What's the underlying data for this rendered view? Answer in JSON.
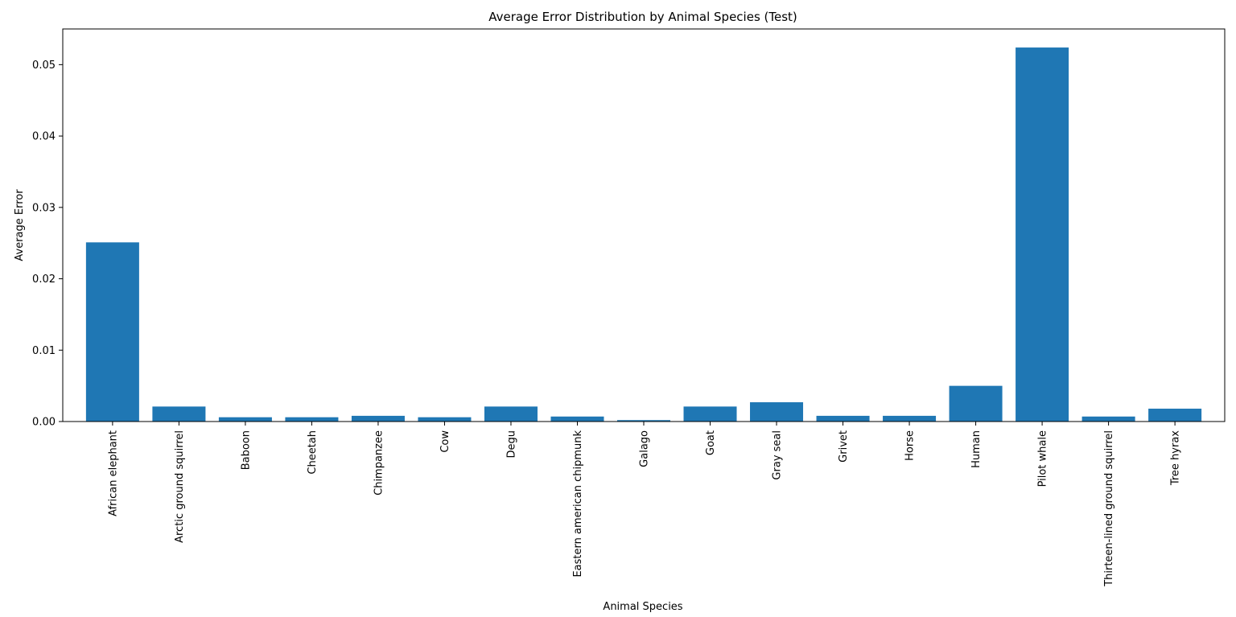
{
  "chart_data": {
    "type": "bar",
    "title": "Average Error Distribution by Animal Species (Test)",
    "xlabel": "Animal Species",
    "ylabel": "Average Error",
    "ylim": [
      0,
      0.055
    ],
    "yticks": [
      "0.00",
      "0.01",
      "0.02",
      "0.03",
      "0.04",
      "0.05"
    ],
    "grid": false,
    "bar_color": "#1f77b4",
    "categories": [
      "African elephant",
      "Arctic ground squirrel",
      "Baboon",
      "Cheetah",
      "Chimpanzee",
      "Cow",
      "Degu",
      "Eastern american chipmunk",
      "Galago",
      "Goat",
      "Gray seal",
      "Grivet",
      "Horse",
      "Human",
      "Pilot whale",
      "Thirteen-lined ground squirrel",
      "Tree hyrax"
    ],
    "values": [
      0.0251,
      0.0021,
      0.0006,
      0.0006,
      0.0008,
      0.0006,
      0.0021,
      0.0007,
      0.0002,
      0.0021,
      0.0027,
      0.0008,
      0.0008,
      0.005,
      0.0524,
      0.0007,
      0.0018
    ]
  }
}
